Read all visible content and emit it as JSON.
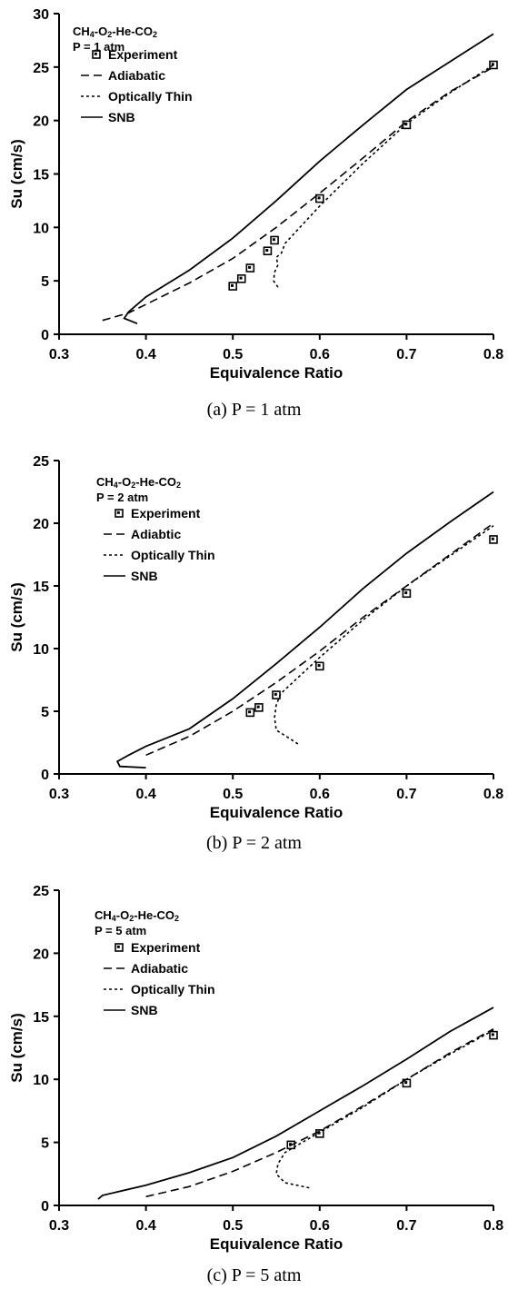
{
  "chart_data": [
    {
      "type": "line",
      "title_lines": [
        "CH4-O2-He-CO2",
        "P = 1 atm"
      ],
      "caption": "(a) P = 1 atm",
      "xlabel": "Equivalence Ratio",
      "ylabel": "Su (cm/s)",
      "xlim": [
        0.3,
        0.8
      ],
      "ylim": [
        0,
        30
      ],
      "xticks": [
        "0.3",
        "0.4",
        "0.5",
        "0.6",
        "0.7",
        "0.8"
      ],
      "yticks": [
        "0",
        "5",
        "10",
        "15",
        "20",
        "25",
        "30"
      ],
      "legend_position": "top-left",
      "series": [
        {
          "name": "Experiment",
          "style": "marker",
          "x": [
            0.5,
            0.51,
            0.52,
            0.54,
            0.548,
            0.6,
            0.7,
            0.8
          ],
          "y": [
            4.5,
            5.2,
            6.2,
            7.8,
            8.8,
            12.7,
            19.6,
            25.2
          ]
        },
        {
          "name": "Adiabatic",
          "style": "dash",
          "x": [
            0.35,
            0.38,
            0.4,
            0.45,
            0.5,
            0.55,
            0.6,
            0.65,
            0.7,
            0.75,
            0.8
          ],
          "y": [
            1.3,
            2.0,
            2.8,
            4.8,
            7.1,
            10.0,
            13.2,
            16.5,
            19.9,
            22.7,
            25.0
          ]
        },
        {
          "name": "Optically Thin",
          "style": "dot",
          "x": [
            0.552,
            0.547,
            0.548,
            0.552,
            0.55,
            0.556,
            0.56,
            0.6,
            0.65,
            0.7,
            0.75,
            0.8
          ],
          "y": [
            4.4,
            5.0,
            5.8,
            6.5,
            7.2,
            7.6,
            8.5,
            12.0,
            16.0,
            19.7,
            22.6,
            25.2
          ]
        },
        {
          "name": "SNB",
          "style": "solid",
          "x": [
            0.39,
            0.375,
            0.38,
            0.4,
            0.45,
            0.5,
            0.55,
            0.6,
            0.65,
            0.7,
            0.75,
            0.8
          ],
          "y": [
            1.0,
            1.5,
            2.1,
            3.5,
            6.0,
            9.0,
            12.5,
            16.2,
            19.6,
            22.9,
            25.5,
            28.1
          ]
        }
      ]
    },
    {
      "type": "line",
      "title_lines": [
        "CH4-O2-He-CO2",
        "P = 2 atm"
      ],
      "caption": "(b) P = 2 atm",
      "xlabel": "Equivalence Ratio",
      "ylabel": "Su (cm/s)",
      "xlim": [
        0.3,
        0.8
      ],
      "ylim": [
        0,
        25
      ],
      "xticks": [
        "0.3",
        "0.4",
        "0.5",
        "0.6",
        "0.7",
        "0.8"
      ],
      "yticks": [
        "0",
        "5",
        "10",
        "15",
        "20",
        "25"
      ],
      "legend_position": "top-left",
      "series": [
        {
          "name": "Experiment",
          "style": "marker",
          "x": [
            0.52,
            0.53,
            0.55,
            0.6,
            0.7,
            0.8
          ],
          "y": [
            4.9,
            5.3,
            6.3,
            8.6,
            14.4,
            18.7
          ]
        },
        {
          "name": "Adiabtic",
          "style": "dash",
          "x": [
            0.4,
            0.45,
            0.5,
            0.55,
            0.6,
            0.65,
            0.7,
            0.75,
            0.8
          ],
          "y": [
            1.5,
            3.0,
            5.0,
            7.3,
            9.8,
            12.5,
            15.0,
            17.5,
            20.0
          ]
        },
        {
          "name": "Optically Thin",
          "style": "dot",
          "x": [
            0.575,
            0.55,
            0.548,
            0.55,
            0.555,
            0.6,
            0.65,
            0.7,
            0.75,
            0.8
          ],
          "y": [
            2.4,
            3.5,
            4.5,
            5.5,
            6.4,
            9.3,
            12.3,
            15.0,
            17.4,
            19.8
          ]
        },
        {
          "name": "SNB",
          "style": "solid",
          "x": [
            0.4,
            0.37,
            0.367,
            0.38,
            0.4,
            0.45,
            0.5,
            0.55,
            0.6,
            0.65,
            0.7,
            0.75,
            0.8
          ],
          "y": [
            0.5,
            0.6,
            1.0,
            1.5,
            2.2,
            3.6,
            6.0,
            8.8,
            11.7,
            14.8,
            17.6,
            20.1,
            22.5
          ]
        }
      ]
    },
    {
      "type": "line",
      "title_lines": [
        "CH4-O2-He-CO2",
        "P = 5 atm"
      ],
      "caption": "(c) P = 5 atm",
      "xlabel": "Equivalence Ratio",
      "ylabel": "Su (cm/s)",
      "xlim": [
        0.3,
        0.8
      ],
      "ylim": [
        0,
        25
      ],
      "xticks": [
        "0.3",
        "0.4",
        "0.5",
        "0.6",
        "0.7",
        "0.8"
      ],
      "yticks": [
        "0",
        "5",
        "10",
        "15",
        "20",
        "25"
      ],
      "legend_position": "top-left",
      "series": [
        {
          "name": "Experiment",
          "style": "marker",
          "x": [
            0.567,
            0.6,
            0.7,
            0.8
          ],
          "y": [
            4.8,
            5.7,
            9.7,
            13.5
          ]
        },
        {
          "name": "Adiabatic",
          "style": "dash",
          "x": [
            0.4,
            0.45,
            0.5,
            0.55,
            0.6,
            0.65,
            0.7,
            0.75,
            0.8
          ],
          "y": [
            0.7,
            1.5,
            2.7,
            4.2,
            5.9,
            7.9,
            10.0,
            12.1,
            14.0
          ]
        },
        {
          "name": "Optically Thin",
          "style": "dot",
          "x": [
            0.588,
            0.56,
            0.55,
            0.552,
            0.56,
            0.58,
            0.6,
            0.65,
            0.7,
            0.75,
            0.8
          ],
          "y": [
            1.4,
            1.8,
            2.5,
            3.3,
            4.2,
            5.0,
            5.8,
            7.8,
            10.0,
            12.0,
            13.9
          ]
        },
        {
          "name": "SNB",
          "style": "solid",
          "x": [
            0.345,
            0.35,
            0.4,
            0.45,
            0.5,
            0.55,
            0.6,
            0.65,
            0.7,
            0.75,
            0.8
          ],
          "y": [
            0.5,
            0.8,
            1.6,
            2.6,
            3.8,
            5.5,
            7.5,
            9.5,
            11.6,
            13.8,
            15.7
          ]
        }
      ]
    }
  ]
}
